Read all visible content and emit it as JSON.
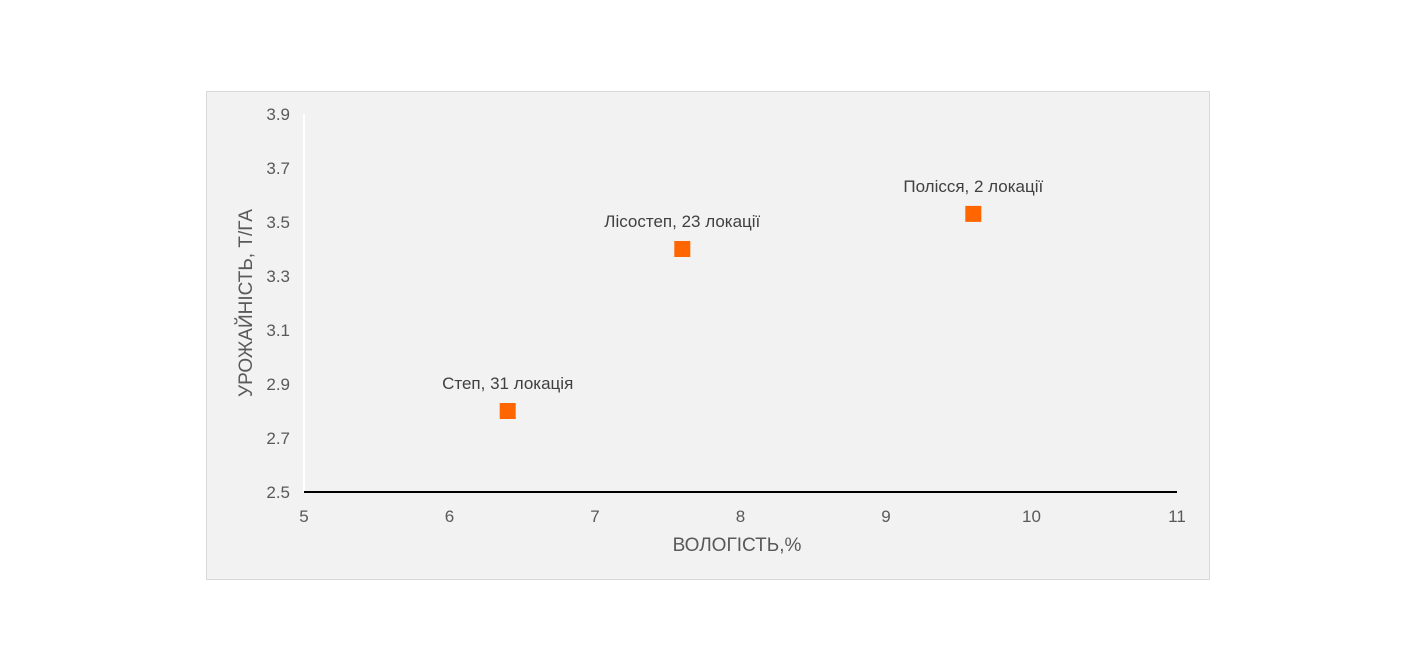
{
  "chart_data": {
    "type": "scatter",
    "title": "",
    "xlabel": "ВОЛОГІСТЬ,%",
    "ylabel": "УРОЖАЙНІСТЬ, Т/ГА",
    "xlim": [
      5,
      11
    ],
    "ylim": [
      2.5,
      3.9
    ],
    "x_ticks": [
      "5",
      "6",
      "7",
      "8",
      "9",
      "10",
      "11"
    ],
    "y_ticks": [
      "2.5",
      "2.7",
      "2.9",
      "3.1",
      "3.3",
      "3.5",
      "3.7",
      "3.9"
    ],
    "grid": false,
    "legend": "none",
    "marker": "square",
    "marker_color": "#ff6600",
    "points": [
      {
        "x": 6.4,
        "y": 2.8,
        "label": "Степ, 31 локація"
      },
      {
        "x": 7.6,
        "y": 3.4,
        "label": "Лісостеп, 23 локації"
      },
      {
        "x": 9.6,
        "y": 3.53,
        "label": "Полісся, 2 локації"
      }
    ]
  }
}
